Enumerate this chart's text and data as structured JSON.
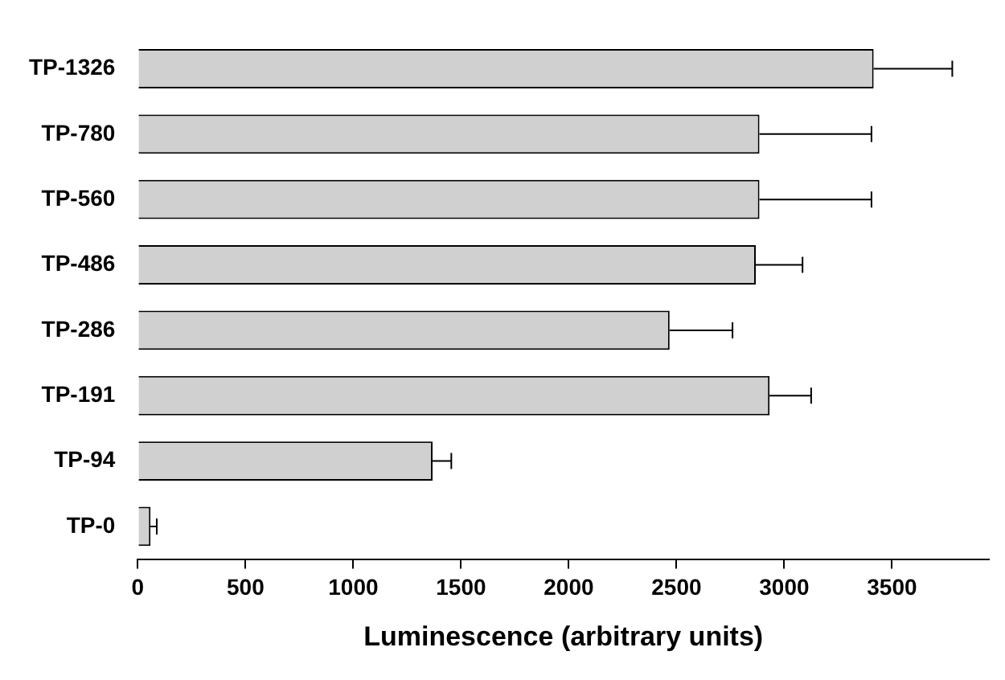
{
  "chart_data": {
    "type": "bar",
    "orientation": "horizontal",
    "xlabel": "Luminescence (arbitrary units)",
    "categories": [
      "TP-1326",
      "TP-780",
      "TP-560",
      "TP-486",
      "TP-286",
      "TP-191",
      "TP-94",
      "TP-0"
    ],
    "values": [
      3415,
      2885,
      2885,
      2868,
      2468,
      2932,
      1368,
      59
    ],
    "errors": [
      [
        3415,
        3780
      ],
      [
        2885,
        3405
      ],
      [
        2885,
        3405
      ],
      [
        2868,
        3085
      ],
      [
        2468,
        2760
      ],
      [
        2932,
        3125
      ],
      [
        1368,
        1455
      ],
      [
        59,
        88
      ]
    ],
    "color": "#d0d0d0",
    "xlim": [
      0,
      3950
    ],
    "xticks": [
      0,
      500,
      1000,
      1500,
      2000,
      2500,
      3000,
      3500
    ],
    "grid": false,
    "legend": false
  }
}
